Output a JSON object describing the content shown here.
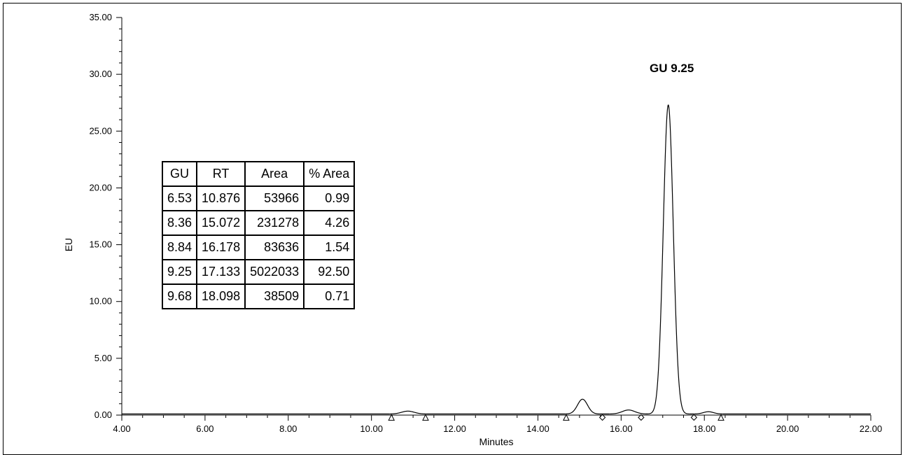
{
  "chart_data": {
    "type": "line",
    "xlabel": "Minutes",
    "ylabel": "EU",
    "xlim": [
      4,
      22
    ],
    "ylim": [
      0,
      35
    ],
    "x_ticks": [
      "4.00",
      "6.00",
      "8.00",
      "10.00",
      "12.00",
      "14.00",
      "16.00",
      "18.00",
      "20.00",
      "22.00"
    ],
    "y_ticks": [
      "0.00",
      "5.00",
      "10.00",
      "15.00",
      "20.00",
      "25.00",
      "30.00",
      "35.00"
    ],
    "baseline": 0.1,
    "peaks": [
      {
        "rt": 10.876,
        "height": 0.25,
        "width": 0.15
      },
      {
        "rt": 15.072,
        "height": 1.3,
        "width": 0.12
      },
      {
        "rt": 16.178,
        "height": 0.35,
        "width": 0.15
      },
      {
        "rt": 17.133,
        "height": 27.2,
        "width": 0.12
      },
      {
        "rt": 18.098,
        "height": 0.2,
        "width": 0.12
      }
    ],
    "markers": [
      {
        "x": 10.48,
        "shape": "triangle"
      },
      {
        "x": 11.3,
        "shape": "triangle"
      },
      {
        "x": 14.68,
        "shape": "triangle"
      },
      {
        "x": 15.55,
        "shape": "diamond"
      },
      {
        "x": 16.48,
        "shape": "diamond"
      },
      {
        "x": 17.75,
        "shape": "diamond"
      },
      {
        "x": 18.4,
        "shape": "triangle"
      }
    ],
    "annotations": [
      {
        "text": "GU 9.25",
        "x": 17.133,
        "y": 30.2
      }
    ],
    "grid": false
  },
  "table": {
    "headers": [
      "GU",
      "RT",
      "Area",
      "% Area"
    ],
    "rows": [
      [
        "6.53",
        "10.876",
        "53966",
        "0.99"
      ],
      [
        "8.36",
        "15.072",
        "231278",
        "4.26"
      ],
      [
        "8.84",
        "16.178",
        "83636",
        "1.54"
      ],
      [
        "9.25",
        "17.133",
        "5022033",
        "92.50"
      ],
      [
        "9.68",
        "18.098",
        "38509",
        "0.71"
      ]
    ]
  }
}
